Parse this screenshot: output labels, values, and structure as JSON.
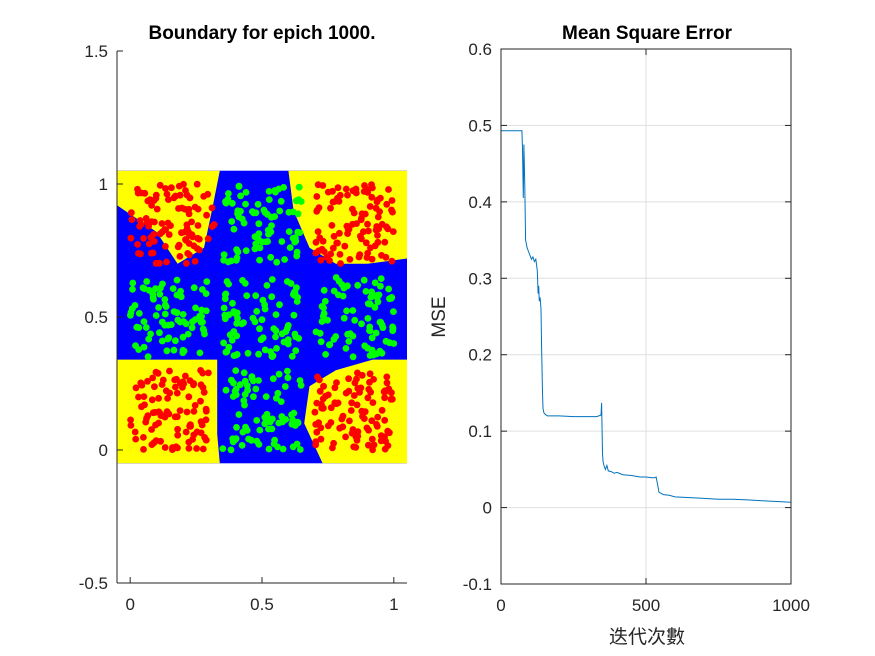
{
  "chart_data": [
    {
      "type": "scatter",
      "title": "Boundary for epich 1000.",
      "xlabel": "",
      "ylabel": "",
      "xlim": [
        -0.05,
        1.05
      ],
      "ylim": [
        -0.5,
        1.5
      ],
      "xticks": [
        0,
        0.5,
        1
      ],
      "xtick_labels": [
        "0",
        "0.5",
        "1"
      ],
      "yticks": [
        -0.5,
        0,
        0.5,
        1,
        1.5
      ],
      "ytick_labels": [
        "-0.5",
        "0",
        "0.5",
        "1",
        "1.5"
      ],
      "grid": false,
      "background_region": {
        "x": [
          -0.05,
          1.05
        ],
        "y": [
          -0.05,
          1.05
        ],
        "class_colors": {
          "yellow": "#ffff00",
          "blue": "#0000ff"
        },
        "yellow_regions": [
          [
            [
              -0.05,
              1.05
            ],
            [
              0.34,
              1.05
            ],
            [
              0.31,
              0.9
            ],
            [
              0.28,
              0.76
            ],
            [
              0.18,
              0.7
            ],
            [
              0.1,
              0.82
            ],
            [
              -0.05,
              0.92
            ]
          ],
          [
            [
              0.6,
              1.05
            ],
            [
              1.05,
              1.05
            ],
            [
              1.05,
              0.72
            ],
            [
              0.9,
              0.7
            ],
            [
              0.78,
              0.7
            ],
            [
              0.68,
              0.76
            ],
            [
              0.62,
              0.9
            ]
          ],
          [
            [
              -0.05,
              0.34
            ],
            [
              0.33,
              0.34
            ],
            [
              0.33,
              0.06
            ],
            [
              0.34,
              -0.05
            ],
            [
              -0.05,
              -0.05
            ]
          ],
          [
            [
              0.73,
              -0.05
            ],
            [
              1.05,
              -0.05
            ],
            [
              1.05,
              0.34
            ],
            [
              0.92,
              0.34
            ],
            [
              0.78,
              0.3
            ],
            [
              0.68,
              0.24
            ],
            [
              0.66,
              0.1
            ]
          ]
        ]
      },
      "series": [
        {
          "color": "#ff0000",
          "regions": [
            [
              [
                0.0,
                0.32
              ],
              [
                0.7,
                1.0
              ]
            ],
            [
              [
                0.7,
                1.0
              ],
              [
                0.7,
                1.0
              ]
            ],
            [
              [
                0.0,
                0.3
              ],
              [
                0.0,
                0.3
              ]
            ],
            [
              [
                0.7,
                1.0
              ],
              [
                0.0,
                0.3
              ]
            ]
          ],
          "points_per_region": 100
        },
        {
          "color": "#00ff00",
          "regions": [
            [
              [
                0.35,
                0.65
              ],
              [
                0.7,
                1.0
              ]
            ],
            [
              [
                0.0,
                0.3
              ],
              [
                0.35,
                0.65
              ]
            ],
            [
              [
                0.35,
                0.65
              ],
              [
                0.35,
                0.65
              ]
            ],
            [
              [
                0.7,
                1.0
              ],
              [
                0.35,
                0.65
              ]
            ],
            [
              [
                0.35,
                0.65
              ],
              [
                0.0,
                0.3
              ]
            ]
          ],
          "points_per_region": 80
        }
      ]
    },
    {
      "type": "line",
      "title": "Mean Square Error",
      "xlabel": "迭代次數",
      "ylabel": "MSE",
      "xlim": [
        0,
        1000
      ],
      "ylim": [
        -0.1,
        0.6
      ],
      "xticks": [
        0,
        500,
        1000
      ],
      "xtick_labels": [
        "0",
        "500",
        "1000"
      ],
      "yticks": [
        -0.1,
        0,
        0.1,
        0.2,
        0.3,
        0.4,
        0.5,
        0.6
      ],
      "ytick_labels": [
        "-0.1",
        "0",
        "0.1",
        "0.2",
        "0.3",
        "0.4",
        "0.5",
        "0.6"
      ],
      "grid": true,
      "color": "#0072bd",
      "x": [
        0,
        72,
        74,
        77,
        79,
        82,
        85,
        90,
        95,
        100,
        105,
        110,
        115,
        120,
        125,
        128,
        130,
        132,
        135,
        138,
        140,
        143,
        145,
        148,
        152,
        160,
        175,
        200,
        250,
        300,
        330,
        345,
        347,
        350,
        352,
        355,
        360,
        365,
        370,
        380,
        390,
        400,
        420,
        450,
        480,
        500,
        520,
        530,
        535,
        540,
        545,
        550,
        560,
        580,
        600,
        650,
        700,
        750,
        800,
        850,
        900,
        950,
        1000
      ],
      "y": [
        0.493,
        0.493,
        0.47,
        0.405,
        0.475,
        0.42,
        0.35,
        0.34,
        0.335,
        0.33,
        0.325,
        0.328,
        0.322,
        0.325,
        0.31,
        0.28,
        0.29,
        0.27,
        0.275,
        0.26,
        0.21,
        0.15,
        0.13,
        0.124,
        0.122,
        0.12,
        0.12,
        0.12,
        0.119,
        0.119,
        0.119,
        0.121,
        0.137,
        0.07,
        0.06,
        0.055,
        0.05,
        0.055,
        0.048,
        0.047,
        0.045,
        0.046,
        0.043,
        0.042,
        0.04,
        0.04,
        0.039,
        0.039,
        0.04,
        0.03,
        0.02,
        0.019,
        0.017,
        0.016,
        0.014,
        0.013,
        0.012,
        0.011,
        0.011,
        0.01,
        0.009,
        0.008,
        0.007
      ]
    }
  ]
}
